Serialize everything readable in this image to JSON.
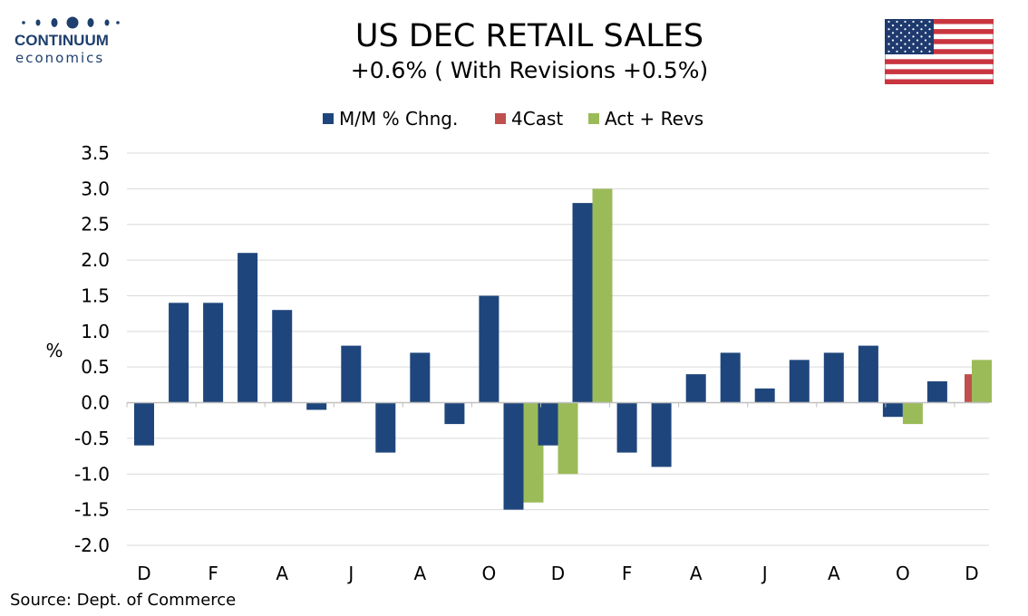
{
  "logo": {
    "name": "CONTINUUM",
    "sub": "economics"
  },
  "title": "US DEC RETAIL SALES",
  "subtitle": "+0.6% ( With Revisions +0.5%)",
  "source": "Source: Dept. of Commerce",
  "colors": {
    "mm": "#1f467c",
    "forecast": "#c0504d",
    "actrev": "#9bbb59",
    "grid": "#d9d9d9",
    "axis": "#bfbfbf",
    "logo": "#1f3f6e"
  },
  "chart_data": {
    "type": "bar",
    "ylabel": "%",
    "ylim": [
      -2.0,
      3.5
    ],
    "yticks": [
      "3.5",
      "3.0",
      "2.5",
      "2.0",
      "1.5",
      "1.0",
      "0.5",
      "0.0",
      "-0.5",
      "-1.0",
      "-1.5",
      "-2.0"
    ],
    "x_tick_labels": [
      "D",
      "F",
      "A",
      "J",
      "A",
      "O",
      "D",
      "F",
      "A",
      "J",
      "A",
      "O",
      "D"
    ],
    "grid": true,
    "legend_position": "top-center",
    "series": [
      {
        "name": "M/M % Chng.",
        "values": [
          -0.6,
          1.4,
          1.4,
          2.1,
          1.3,
          -0.1,
          0.8,
          -0.7,
          0.7,
          -0.3,
          1.5,
          -1.5,
          -0.6,
          2.8,
          -0.7,
          -0.9,
          0.4,
          0.7,
          0.2,
          0.6,
          0.7,
          0.8,
          -0.2,
          0.3,
          null
        ]
      },
      {
        "name": "4Cast",
        "values": [
          null,
          null,
          null,
          null,
          null,
          null,
          null,
          null,
          null,
          null,
          null,
          null,
          null,
          null,
          null,
          null,
          null,
          null,
          null,
          null,
          null,
          null,
          null,
          null,
          0.4
        ]
      },
      {
        "name": "Act + Revs",
        "values": [
          null,
          null,
          null,
          null,
          null,
          null,
          null,
          null,
          null,
          null,
          null,
          -1.4,
          -1.0,
          3.0,
          null,
          null,
          null,
          null,
          null,
          null,
          null,
          null,
          -0.3,
          null,
          0.6
        ]
      }
    ]
  }
}
